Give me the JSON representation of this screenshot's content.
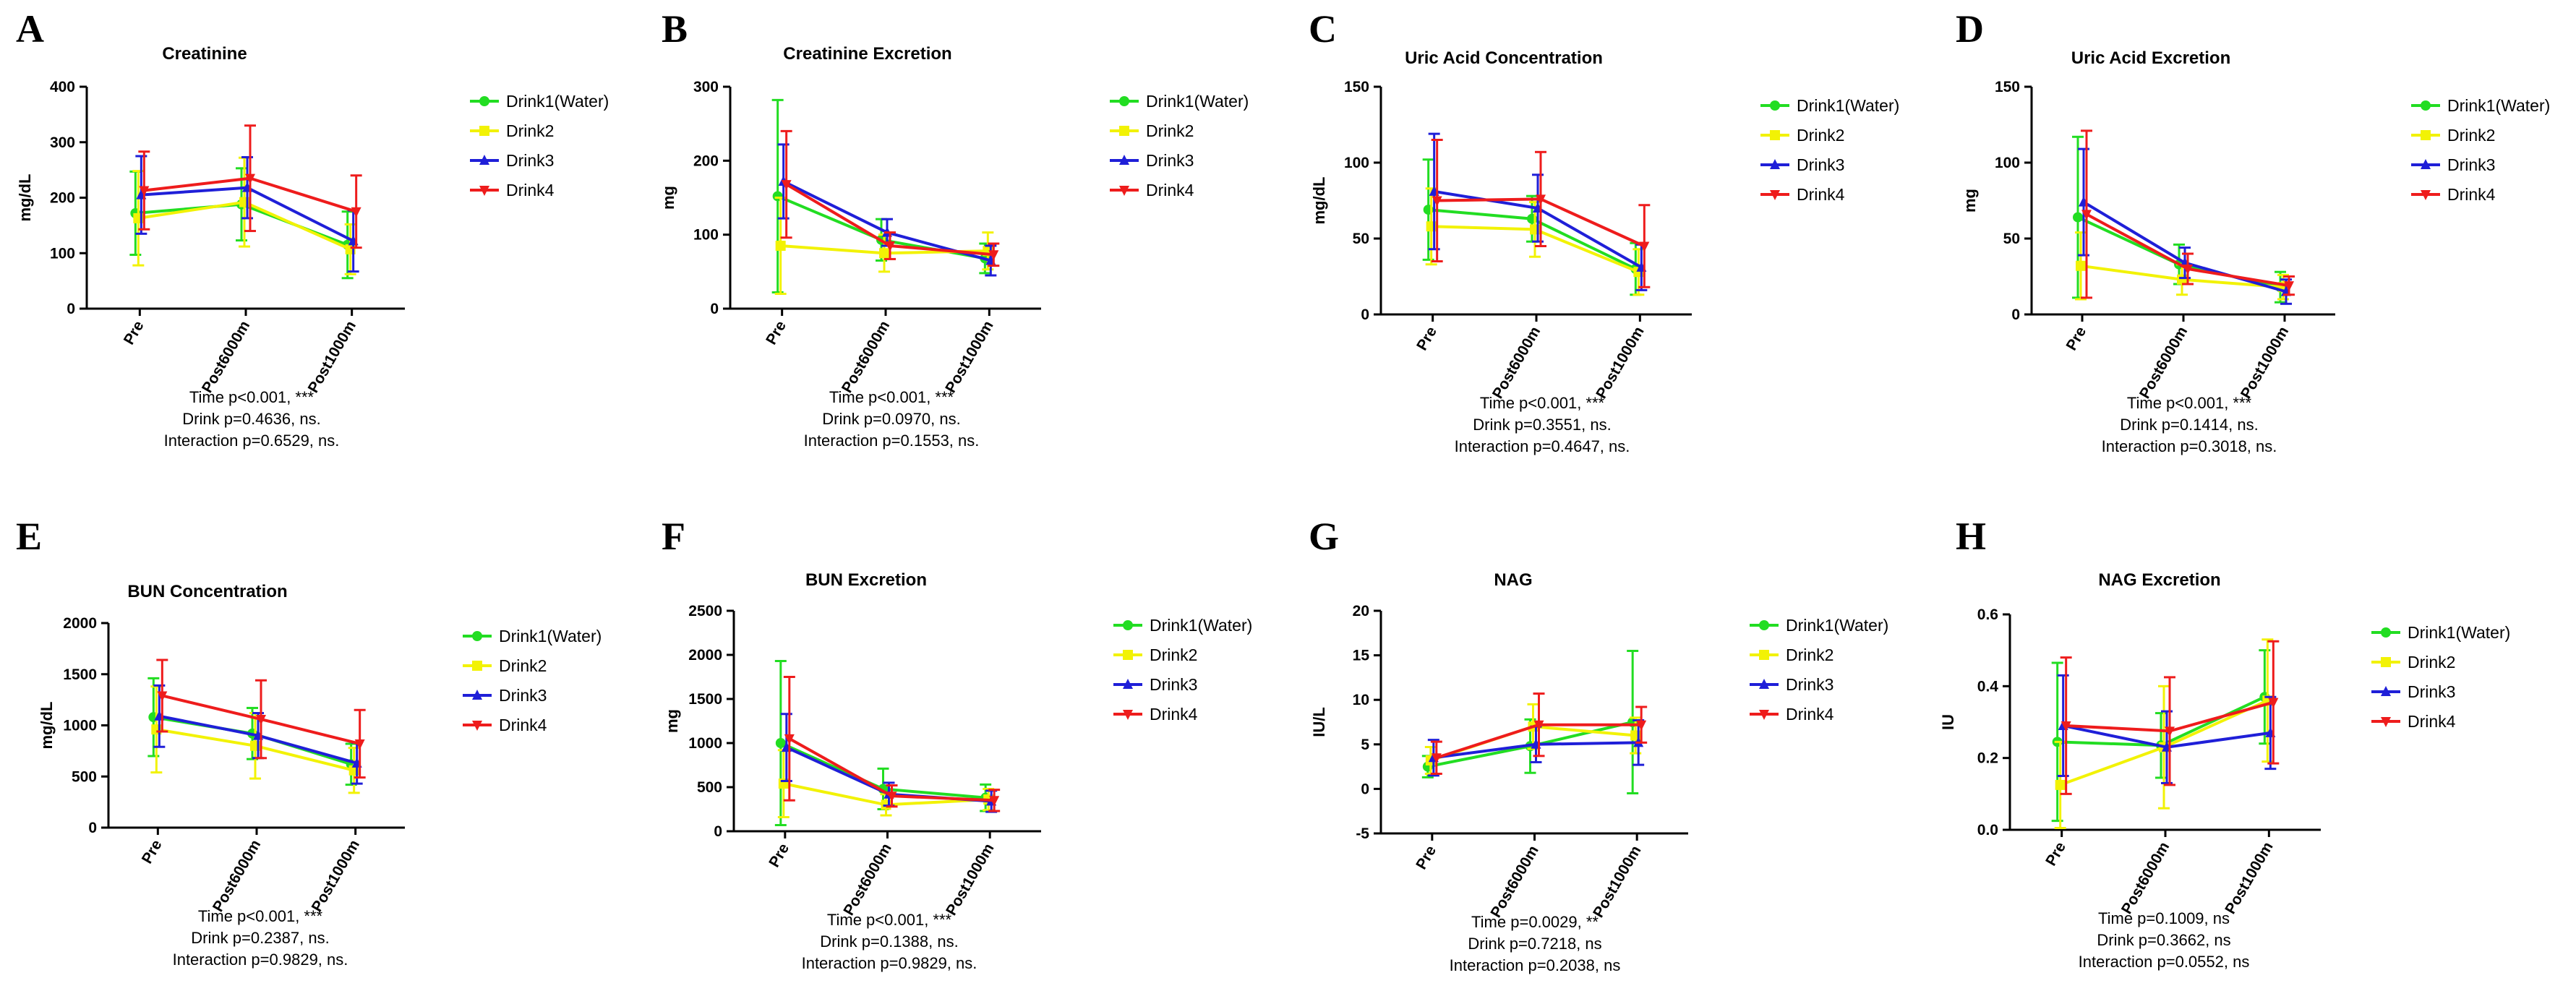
{
  "figure": {
    "series_names": [
      "Drink1(Water)",
      "Drink2",
      "Drink3",
      "Drink4"
    ],
    "series_colors": [
      "#22dd22",
      "#f2f205",
      "#1f1fd8",
      "#ee1c1c"
    ],
    "series_markers": [
      "circle",
      "square",
      "triangle",
      "triangle-down"
    ]
  },
  "chart_data": [
    {
      "panel": "A",
      "type": "line",
      "title": "Creatinine",
      "ylabel": "mg/dL",
      "xlabel": "",
      "categories": [
        "Pre",
        "Post6000m",
        "Post1000m"
      ],
      "ylim": [
        0,
        400
      ],
      "yticks": [
        0,
        100,
        200,
        300,
        400
      ],
      "series": [
        {
          "name": "Drink1(Water)",
          "values": [
            172,
            188,
            115
          ],
          "err": [
            75,
            65,
            60
          ]
        },
        {
          "name": "Drink2",
          "values": [
            163,
            192,
            107
          ],
          "err": [
            85,
            80,
            45
          ]
        },
        {
          "name": "Drink3",
          "values": [
            205,
            218,
            122
          ],
          "err": [
            70,
            55,
            55
          ]
        },
        {
          "name": "Drink4",
          "values": [
            213,
            235,
            175
          ],
          "err": [
            70,
            95,
            65
          ]
        }
      ],
      "stats": [
        "Time p<0.001, ***",
        "Drink p=0.4636, ns.",
        "Interaction p=0.6529, ns."
      ]
    },
    {
      "panel": "B",
      "type": "line",
      "title": "Creatinine Excretion",
      "ylabel": "mg",
      "xlabel": "",
      "categories": [
        "Pre",
        "Post6000m",
        "Post1000m"
      ],
      "ylim": [
        0,
        300
      ],
      "yticks": [
        0,
        100,
        200,
        300
      ],
      "series": [
        {
          "name": "Drink1(Water)",
          "values": [
            152,
            93,
            68
          ],
          "err": [
            130,
            28,
            20
          ]
        },
        {
          "name": "Drink2",
          "values": [
            85,
            75,
            78
          ],
          "err": [
            65,
            25,
            25
          ]
        },
        {
          "name": "Drink3",
          "values": [
            172,
            103,
            65
          ],
          "err": [
            50,
            18,
            20
          ]
        },
        {
          "name": "Drink4",
          "values": [
            168,
            85,
            73
          ],
          "err": [
            72,
            18,
            15
          ]
        }
      ],
      "stats": [
        "Time p<0.001, ***",
        "Drink p=0.0970, ns.",
        "Interaction p=0.1553, ns."
      ]
    },
    {
      "panel": "C",
      "type": "line",
      "title": "Uric Acid Concentration",
      "ylabel": "mg/dL",
      "xlabel": "",
      "categories": [
        "Pre",
        "Post6000m",
        "Post1000m"
      ],
      "ylim": [
        0,
        150
      ],
      "yticks": [
        0,
        50,
        100,
        150
      ],
      "series": [
        {
          "name": "Drink1(Water)",
          "values": [
            69,
            63,
            30
          ],
          "err": [
            33,
            15,
            17
          ]
        },
        {
          "name": "Drink2",
          "values": [
            58,
            56,
            28
          ],
          "err": [
            25,
            18,
            15
          ]
        },
        {
          "name": "Drink3",
          "values": [
            81,
            70,
            31
          ],
          "err": [
            38,
            22,
            15
          ]
        },
        {
          "name": "Drink4",
          "values": [
            75,
            76,
            45
          ],
          "err": [
            40,
            31,
            27
          ]
        }
      ],
      "stats": [
        "Time p<0.001, ***",
        "Drink p=0.3551, ns.",
        "Interaction p=0.4647, ns."
      ]
    },
    {
      "panel": "D",
      "type": "line",
      "title": "Uric Acid Excretion",
      "ylabel": "mg",
      "xlabel": "",
      "categories": [
        "Pre",
        "Post6000m",
        "Post1000m"
      ],
      "ylim": [
        0,
        150
      ],
      "yticks": [
        0,
        50,
        100,
        150
      ],
      "series": [
        {
          "name": "Drink1(Water)",
          "values": [
            64,
            33,
            18
          ],
          "err": [
            53,
            13,
            10
          ]
        },
        {
          "name": "Drink2",
          "values": [
            32,
            23,
            18
          ],
          "err": [
            22,
            10,
            8
          ]
        },
        {
          "name": "Drink3",
          "values": [
            74,
            34,
            15
          ],
          "err": [
            35,
            10,
            8
          ]
        },
        {
          "name": "Drink4",
          "values": [
            66,
            30,
            19
          ],
          "err": [
            55,
            10,
            6
          ]
        }
      ],
      "stats": [
        "Time p<0.001, ***",
        "Drink p=0.1414, ns.",
        "Interaction p=0.3018, ns."
      ]
    },
    {
      "panel": "E",
      "type": "line",
      "title": "BUN Concentration",
      "ylabel": "mg/dL",
      "xlabel": "",
      "categories": [
        "Pre",
        "Post6000m",
        "Post1000m"
      ],
      "ylim": [
        0,
        2000
      ],
      "yticks": [
        0,
        500,
        1000,
        1500,
        2000
      ],
      "series": [
        {
          "name": "Drink1(Water)",
          "values": [
            1080,
            920,
            620
          ],
          "err": [
            380,
            250,
            200
          ]
        },
        {
          "name": "Drink2",
          "values": [
            960,
            800,
            560
          ],
          "err": [
            420,
            320,
            220
          ]
        },
        {
          "name": "Drink3",
          "values": [
            1090,
            900,
            630
          ],
          "err": [
            300,
            220,
            200
          ]
        },
        {
          "name": "Drink4",
          "values": [
            1290,
            1060,
            820
          ],
          "err": [
            350,
            380,
            330
          ]
        }
      ],
      "stats": [
        "Time p<0.001, ***",
        "Drink p=0.2387, ns.",
        "Interaction p=0.9829, ns."
      ]
    },
    {
      "panel": "F",
      "type": "line",
      "title": "BUN Excretion",
      "ylabel": "mg",
      "xlabel": "",
      "categories": [
        "Pre",
        "Post6000m",
        "Post1000m"
      ],
      "ylim": [
        0,
        2500
      ],
      "yticks": [
        0,
        500,
        1000,
        1500,
        2000,
        2500
      ],
      "series": [
        {
          "name": "Drink1(Water)",
          "values": [
            1000,
            480,
            380
          ],
          "err": [
            930,
            230,
            150
          ]
        },
        {
          "name": "Drink2",
          "values": [
            540,
            300,
            360
          ],
          "err": [
            380,
            120,
            120
          ]
        },
        {
          "name": "Drink3",
          "values": [
            950,
            420,
            340
          ],
          "err": [
            380,
            130,
            120
          ]
        },
        {
          "name": "Drink4",
          "values": [
            1050,
            400,
            350
          ],
          "err": [
            700,
            120,
            120
          ]
        }
      ],
      "stats": [
        "Time p<0.001, ***",
        "Drink p=0.1388, ns.",
        "Interaction p=0.9829, ns."
      ]
    },
    {
      "panel": "G",
      "type": "line",
      "title": "NAG",
      "ylabel": "IU/L",
      "xlabel": "",
      "categories": [
        "Pre",
        "Post6000m",
        "Post1000m"
      ],
      "ylim": [
        -5,
        20
      ],
      "yticks": [
        -5,
        0,
        5,
        10,
        15,
        20
      ],
      "series": [
        {
          "name": "Drink1(Water)",
          "values": [
            2.5,
            4.8,
            7.5
          ],
          "err": [
            1.2,
            3.0,
            8.0
          ]
        },
        {
          "name": "Drink2",
          "values": [
            3.2,
            7.0,
            6.0
          ],
          "err": [
            1.5,
            2.5,
            2.0
          ]
        },
        {
          "name": "Drink3",
          "values": [
            3.5,
            5.0,
            5.2
          ],
          "err": [
            2.0,
            2.0,
            2.5
          ]
        },
        {
          "name": "Drink4",
          "values": [
            3.5,
            7.2,
            7.2
          ],
          "err": [
            1.8,
            3.5,
            2.0
          ]
        }
      ],
      "stats": [
        "Time p=0.0029, **",
        "Drink p=0.7218, ns",
        "Interaction p=0.2038, ns"
      ]
    },
    {
      "panel": "H",
      "type": "line",
      "title": "NAG Excretion",
      "ylabel": "IU",
      "xlabel": "",
      "categories": [
        "Pre",
        "Post6000m",
        "Post1000m"
      ],
      "ylim": [
        0.0,
        0.6
      ],
      "yticks": [
        0.0,
        0.2,
        0.4,
        0.6
      ],
      "series": [
        {
          "name": "Drink1(Water)",
          "values": [
            0.245,
            0.235,
            0.37
          ],
          "err": [
            0.22,
            0.09,
            0.13
          ]
        },
        {
          "name": "Drink2",
          "values": [
            0.125,
            0.23,
            0.36
          ],
          "err": [
            0.12,
            0.17,
            0.17
          ]
        },
        {
          "name": "Drink3",
          "values": [
            0.29,
            0.23,
            0.27
          ],
          "err": [
            0.14,
            0.1,
            0.1
          ]
        },
        {
          "name": "Drink4",
          "values": [
            0.29,
            0.275,
            0.355
          ],
          "err": [
            0.19,
            0.15,
            0.17
          ]
        }
      ],
      "stats": [
        "Time p=0.1009, ns",
        "Drink p=0.3662, ns",
        "Interaction p=0.0552, ns"
      ]
    }
  ]
}
